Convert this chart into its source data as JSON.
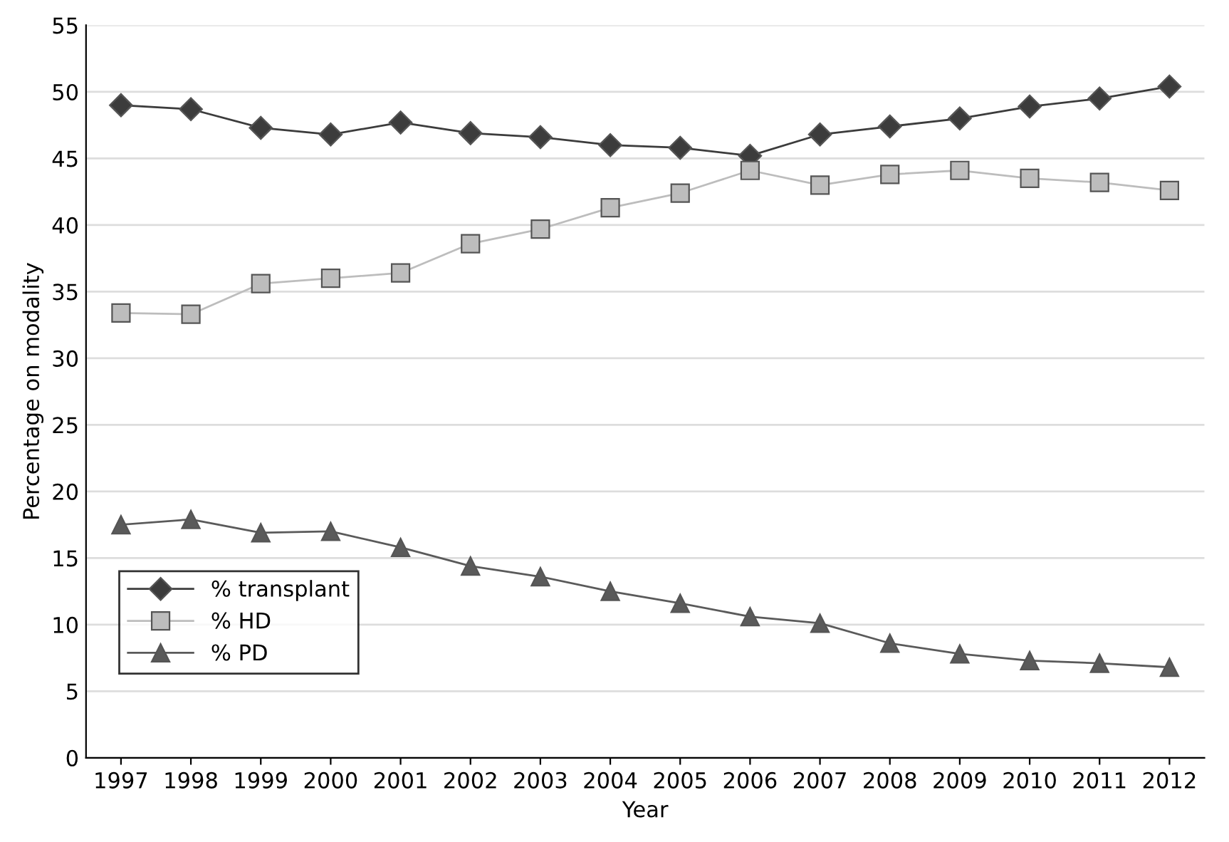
{
  "chart_data": {
    "type": "line",
    "xlabel": "Year",
    "ylabel": "Percentage on modality",
    "categories": [
      "1997",
      "1998",
      "1999",
      "2000",
      "2001",
      "2002",
      "2003",
      "2004",
      "2005",
      "2006",
      "2007",
      "2008",
      "2009",
      "2010",
      "2011",
      "2012"
    ],
    "series": [
      {
        "name": "% transplant",
        "color": "#3c3c3c",
        "marker": "diamond",
        "values": [
          49.0,
          48.7,
          47.3,
          46.8,
          47.7,
          46.9,
          46.6,
          46.0,
          45.8,
          45.2,
          46.8,
          47.4,
          48.0,
          48.9,
          49.5,
          50.4
        ]
      },
      {
        "name": "% HD",
        "color": "#bdbdbd",
        "marker": "square",
        "values": [
          33.4,
          33.3,
          35.6,
          36.0,
          36.4,
          38.6,
          39.7,
          41.3,
          42.4,
          44.1,
          43.0,
          43.8,
          44.1,
          43.5,
          43.2,
          42.6
        ]
      },
      {
        "name": "% PD",
        "color": "#5a5a5a",
        "marker": "triangle",
        "values": [
          17.5,
          17.9,
          16.9,
          17.0,
          15.8,
          14.4,
          13.6,
          12.5,
          11.6,
          10.6,
          10.1,
          8.6,
          7.8,
          7.3,
          7.1,
          6.8
        ]
      }
    ],
    "ylim": [
      0,
      55
    ],
    "yticks": [
      0,
      5,
      10,
      15,
      20,
      25,
      30,
      35,
      40,
      45,
      50,
      55
    ],
    "grid": "y",
    "legend": "bottom left",
    "line_style": "solid"
  }
}
